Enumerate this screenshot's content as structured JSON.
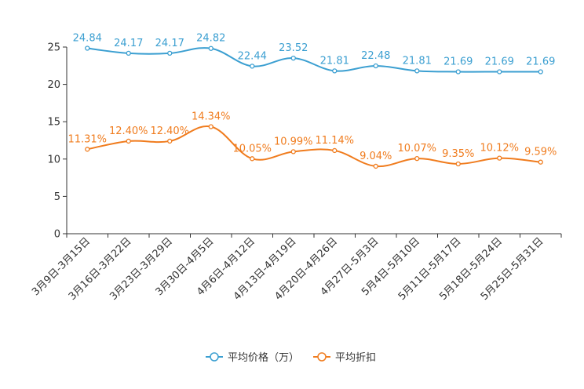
{
  "chart_data": {
    "type": "line",
    "title": "",
    "xlabel": "",
    "ylabel": "",
    "ylim": [
      0,
      25
    ],
    "yticks": [
      0,
      5,
      10,
      15,
      20,
      25
    ],
    "categories": [
      "3月9日-3月15日",
      "3月16日-3月22日",
      "3月23日-3月29日",
      "3月30日-4月5日",
      "4月6日-4月12日",
      "4月13日-4月19日",
      "4月20日-4月26日",
      "4月27日-5月3日",
      "5月4日-5月10日",
      "5月11日-5月17日",
      "5月18日-5月24日",
      "5月25日-5月31日"
    ],
    "series": [
      {
        "name": "平均价格（万）",
        "color": "#3b9fd1",
        "values": [
          24.84,
          24.17,
          24.17,
          24.82,
          22.44,
          23.52,
          21.81,
          22.48,
          21.81,
          21.69,
          21.69,
          21.69
        ],
        "labels": [
          "24.84",
          "24.17",
          "24.17",
          "24.82",
          "22.44",
          "23.52",
          "21.81",
          "22.48",
          "21.81",
          "21.69",
          "21.69",
          "21.69"
        ]
      },
      {
        "name": "平均折扣",
        "color": "#f07c1e",
        "values": [
          11.31,
          12.4,
          12.4,
          14.34,
          10.05,
          10.99,
          11.14,
          9.04,
          10.07,
          9.35,
          10.12,
          9.59
        ],
        "labels": [
          "11.31%",
          "12.40%",
          "12.40%",
          "14.34%",
          "10.05%",
          "10.99%",
          "11.14%",
          "9.04%",
          "10.07%",
          "9.35%",
          "10.12%",
          "9.59%"
        ]
      }
    ],
    "legend_position": "bottom-center",
    "grid": false
  }
}
